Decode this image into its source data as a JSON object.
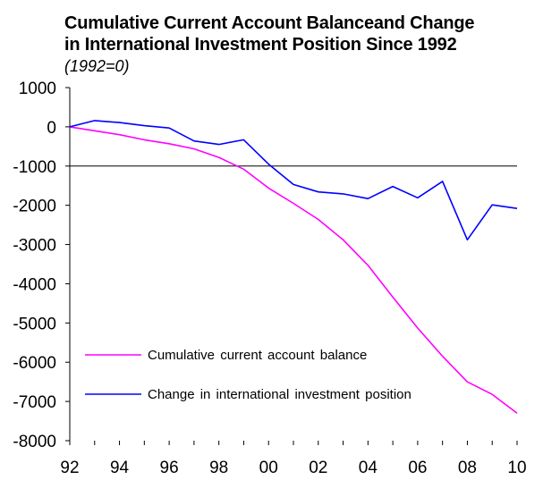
{
  "chart_data": {
    "type": "line",
    "title_line1": "Cumulative Current Account Balanceand Change",
    "title_line2": "in International Investment Position Since 1992",
    "subtitle": "(1992=0)",
    "xlabel": "",
    "ylabel": "",
    "x": [
      "92",
      "93",
      "94",
      "95",
      "96",
      "97",
      "98",
      "99",
      "00",
      "01",
      "02",
      "03",
      "04",
      "05",
      "06",
      "07",
      "08",
      "09",
      "10"
    ],
    "x_tick_labels": [
      "92",
      "94",
      "96",
      "98",
      "00",
      "02",
      "04",
      "06",
      "08",
      "10"
    ],
    "ylim": [
      -8000,
      1000
    ],
    "y_ticks": [
      1000,
      0,
      -1000,
      -2000,
      -3000,
      -4000,
      -5000,
      -6000,
      -7000,
      -8000
    ],
    "y_tick_labels": [
      "1000",
      "0",
      "-1000",
      "-2000",
      "-3000",
      "-4000",
      "-5000",
      "-6000",
      "-7000",
      "-8000"
    ],
    "reference_line": -1000,
    "grid": false,
    "legend_position": "bottom-left",
    "series": [
      {
        "name": "Cumulative current account balance",
        "color": "#ff00ff",
        "values": [
          0,
          -100,
          -200,
          -330,
          -430,
          -560,
          -780,
          -1080,
          -1560,
          -1950,
          -2360,
          -2880,
          -3530,
          -4340,
          -5130,
          -5850,
          -6500,
          -6820,
          -7300
        ]
      },
      {
        "name": "Change in international investment position",
        "color": "#0000ff",
        "values": [
          0,
          160,
          110,
          30,
          -30,
          -360,
          -450,
          -330,
          -950,
          -1470,
          -1660,
          -1710,
          -1830,
          -1520,
          -1810,
          -1390,
          -2880,
          -1990,
          -2080
        ]
      }
    ]
  }
}
